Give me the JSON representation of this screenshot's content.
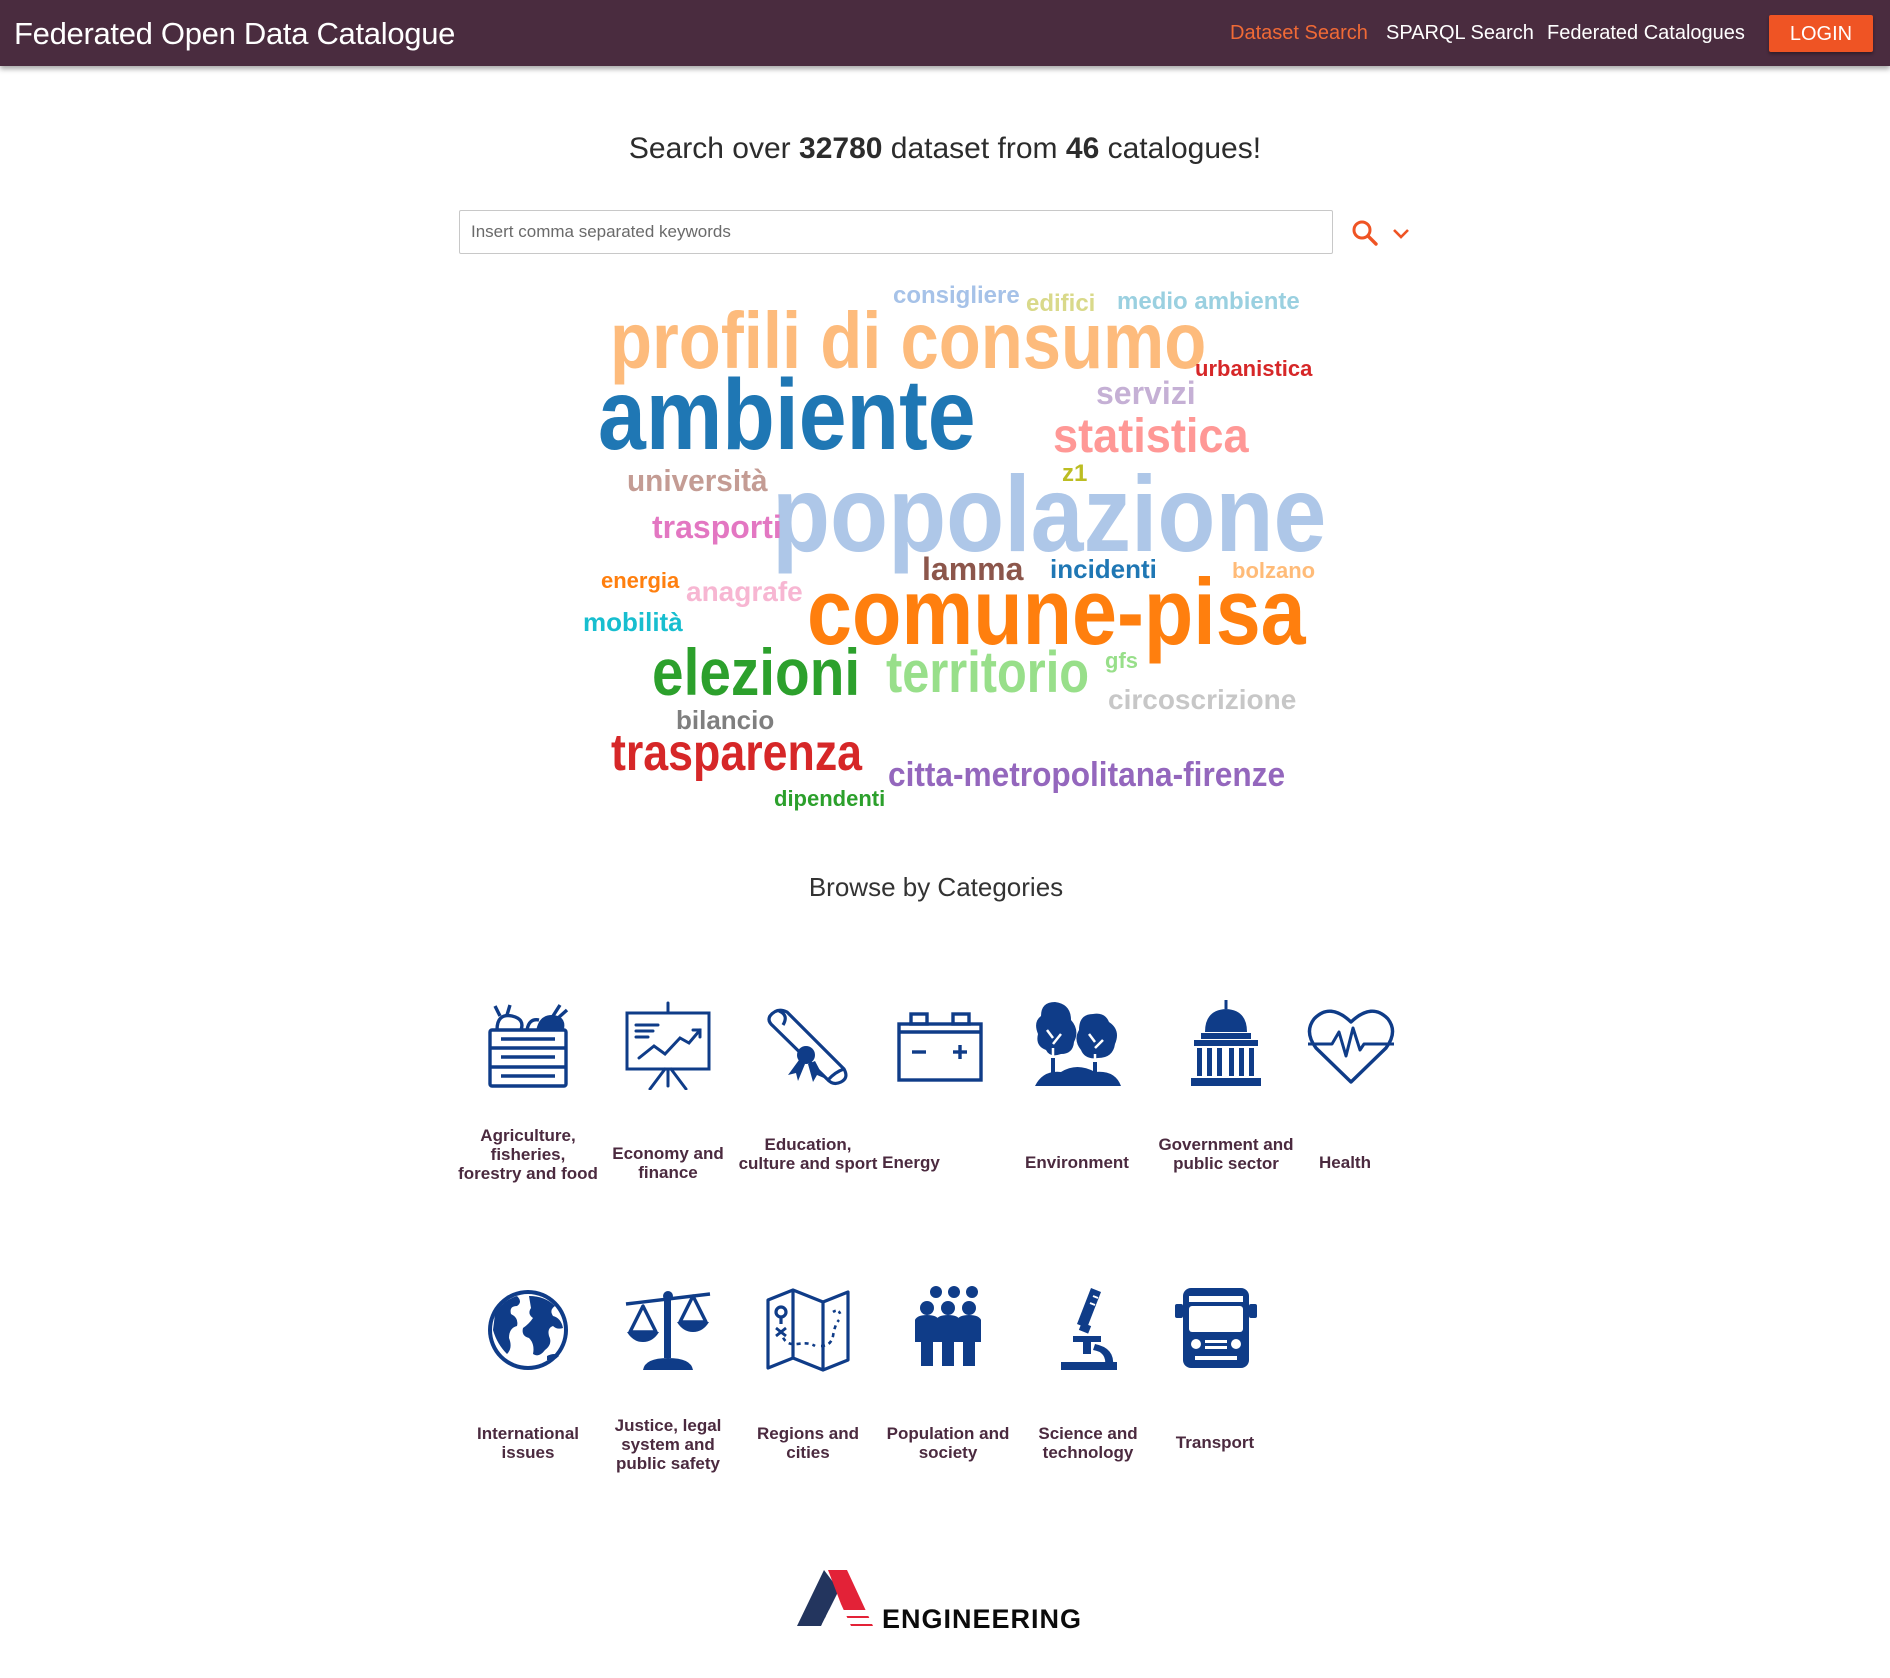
{
  "header": {
    "brand": "Federated Open Data Catalogue",
    "nav": [
      "Dataset Search",
      "SPARQL Search",
      "Federated Catalogues"
    ],
    "active_nav": "Dataset Search",
    "login_label": "LOGIN",
    "colors": {
      "bar": "#4a2c3f",
      "accent": "#ef5424"
    }
  },
  "hero": {
    "prefix": "Search over",
    "dataset_count": "32780",
    "middle": "dataset from",
    "catalogue_count": "46",
    "suffix": "catalogues!"
  },
  "search": {
    "placeholder": "Insert comma separated keywords",
    "value": "",
    "search_icon": "search-icon",
    "options_icon": "chevron-down-icon"
  },
  "word_cloud": [
    {
      "text": "consigliere",
      "color": "#a6c2e8"
    },
    {
      "text": "edifici",
      "color": "#d9d98a"
    },
    {
      "text": "medio ambiente",
      "color": "#9ad0e0"
    },
    {
      "text": "profili di consumo",
      "color": "#fdbb7c"
    },
    {
      "text": "urbanistica",
      "color": "#d62728"
    },
    {
      "text": "ambiente",
      "color": "#1f77b4"
    },
    {
      "text": "servizi",
      "color": "#c5b0d5"
    },
    {
      "text": "statistica",
      "color": "#ff9896"
    },
    {
      "text": "università",
      "color": "#c49c94"
    },
    {
      "text": "z1",
      "color": "#bcbd22"
    },
    {
      "text": "popolazione",
      "color": "#aec7e8"
    },
    {
      "text": "trasporti",
      "color": "#e377c2"
    },
    {
      "text": "lamma",
      "color": "#8c564b"
    },
    {
      "text": "incidenti",
      "color": "#1f77b4"
    },
    {
      "text": "bolzano",
      "color": "#ffbb78"
    },
    {
      "text": "energia",
      "color": "#ff7f0e"
    },
    {
      "text": "anagrafe",
      "color": "#f7b6d2"
    },
    {
      "text": "comune-pisa",
      "color": "#ff7f0e"
    },
    {
      "text": "mobilità",
      "color": "#17becf"
    },
    {
      "text": "elezioni",
      "color": "#2ca02c"
    },
    {
      "text": "territorio",
      "color": "#98df8a"
    },
    {
      "text": "gfs",
      "color": "#98df8a"
    },
    {
      "text": "circoscrizione",
      "color": "#c7c7c7"
    },
    {
      "text": "bilancio",
      "color": "#7f7f7f"
    },
    {
      "text": "trasparenza",
      "color": "#d62728"
    },
    {
      "text": "citta-metropolitana-firenze",
      "color": "#9467bd"
    },
    {
      "text": "dipendenti",
      "color": "#2ca02c"
    }
  ],
  "categories": {
    "title": "Browse by Categories",
    "icon_color": "#0f3c88",
    "items": [
      {
        "label": "Agriculture, fisheries, forestry and food",
        "icon": "vegetable-crate-icon"
      },
      {
        "label": "Economy and finance",
        "icon": "chart-board-icon"
      },
      {
        "label": "Education, culture and sport",
        "icon": "diploma-icon"
      },
      {
        "label": "Energy",
        "icon": "battery-icon"
      },
      {
        "label": "Environment",
        "icon": "trees-icon"
      },
      {
        "label": "Government and public sector",
        "icon": "capitol-icon"
      },
      {
        "label": "Health",
        "icon": "heartbeat-icon"
      },
      {
        "label": "International issues",
        "icon": "globe-icon"
      },
      {
        "label": "Justice, legal system and public safety",
        "icon": "scales-icon"
      },
      {
        "label": "Regions and cities",
        "icon": "map-icon"
      },
      {
        "label": "Population and society",
        "icon": "people-icon"
      },
      {
        "label": "Science and technology",
        "icon": "microscope-icon"
      },
      {
        "label": "Transport",
        "icon": "truck-icon"
      }
    ]
  },
  "footer": {
    "logo_text": "ENGINEERING"
  }
}
